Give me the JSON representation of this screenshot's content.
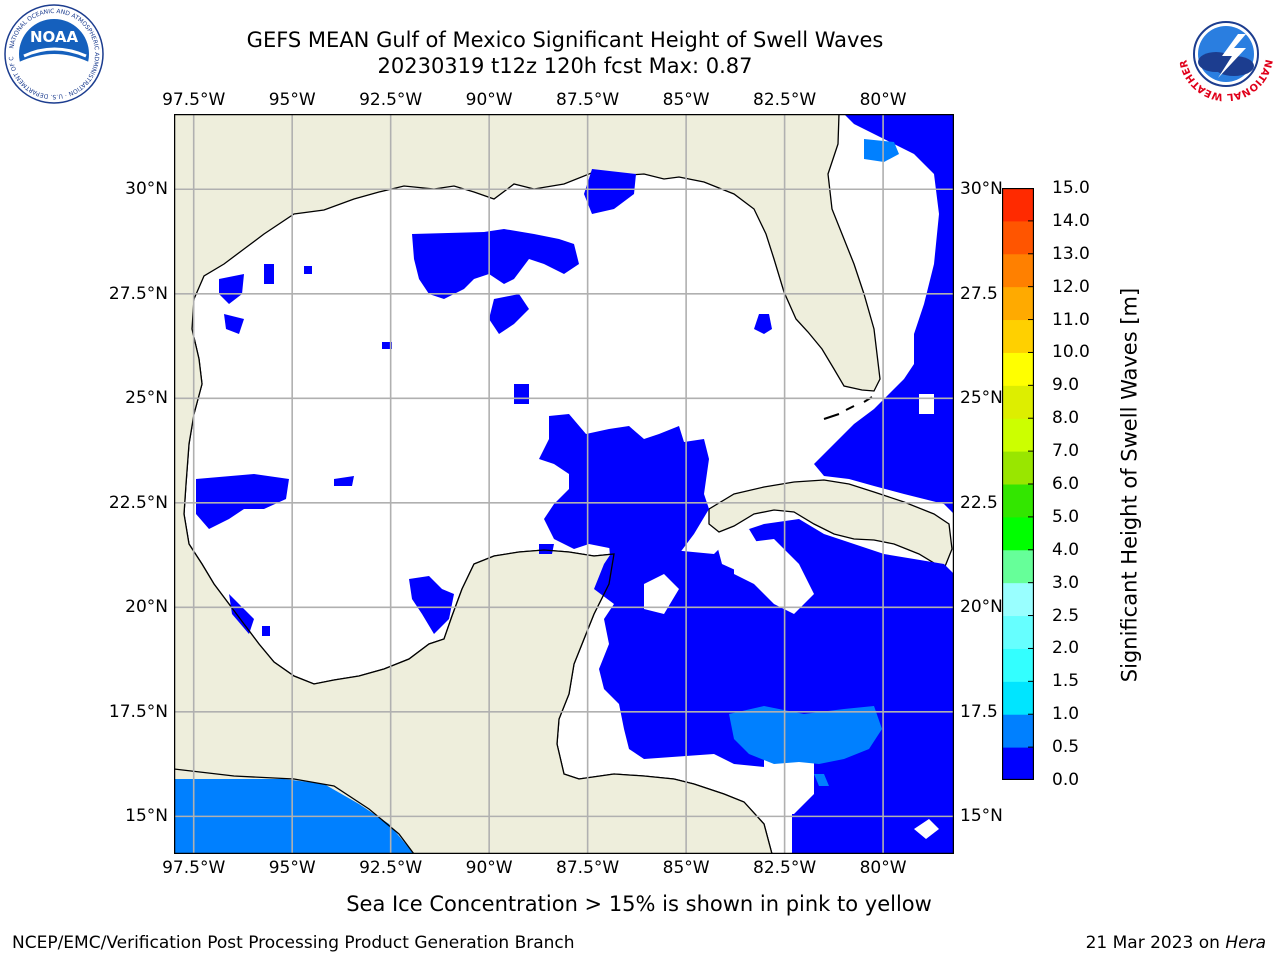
{
  "title": {
    "line1": "GEFS MEAN Gulf of Mexico Significant Height of Swell Waves",
    "line2": "20230319 t12z 120h fcst   Max: 0.87"
  },
  "map": {
    "lon_range": [
      -98.0,
      -78.2
    ],
    "lat_range": [
      14.1,
      31.8
    ],
    "lon_ticks": [
      {
        "value": -97.5,
        "label": "97.5°W"
      },
      {
        "value": -95.0,
        "label": "95°W"
      },
      {
        "value": -92.5,
        "label": "92.5°W"
      },
      {
        "value": -90.0,
        "label": "90°W"
      },
      {
        "value": -87.5,
        "label": "87.5°W"
      },
      {
        "value": -85.0,
        "label": "85°W"
      },
      {
        "value": -82.5,
        "label": "82.5°W"
      },
      {
        "value": -80.0,
        "label": "80°W"
      }
    ],
    "lat_ticks_left": [
      {
        "value": 30.0,
        "label": "30°N"
      },
      {
        "value": 27.5,
        "label": "27.5°N"
      },
      {
        "value": 25.0,
        "label": "25°N"
      },
      {
        "value": 22.5,
        "label": "22.5°N"
      },
      {
        "value": 20.0,
        "label": "20°N"
      },
      {
        "value": 17.5,
        "label": "17.5°N"
      },
      {
        "value": 15.0,
        "label": "15°N"
      }
    ],
    "lat_ticks_right": [
      {
        "value": 30.0,
        "label": "30°N"
      },
      {
        "value": 27.5,
        "label": "27.5"
      },
      {
        "value": 25.0,
        "label": "25°N"
      },
      {
        "value": 22.5,
        "label": "22.5"
      },
      {
        "value": 20.0,
        "label": "20°N"
      },
      {
        "value": 17.5,
        "label": "17.5"
      },
      {
        "value": 15.0,
        "label": "15°N"
      }
    ],
    "colors": {
      "land": "#eeeedc",
      "ocean": "#ffffff",
      "grid": "#b0b0b0",
      "coast": "#000000",
      "swell_0_05": "#0000ff",
      "swell_05_1": "#0080ff"
    }
  },
  "colorbar": {
    "label": "Significant Height of Swell Waves [m]",
    "levels": [
      "0.0",
      "0.5",
      "1.0",
      "1.5",
      "2.0",
      "2.5",
      "3.0",
      "4.0",
      "5.0",
      "6.0",
      "7.0",
      "8.0",
      "9.0",
      "10.0",
      "11.0",
      "12.0",
      "13.0",
      "14.0",
      "15.0"
    ],
    "colors": [
      "#0000ff",
      "#0080ff",
      "#00e5ff",
      "#33ffff",
      "#66ffff",
      "#99ffff",
      "#66ff99",
      "#00ff00",
      "#33e600",
      "#99e600",
      "#ccff00",
      "#ddee00",
      "#ffff00",
      "#ffd000",
      "#ffaa00",
      "#ff8000",
      "#ff5500",
      "#ff2a00",
      "#ff0000"
    ]
  },
  "sea_ice_note": "Sea Ice Concentration > 15% is shown in pink to yellow",
  "footer": {
    "left": "NCEP/EMC/Verification Post Processing Product Generation Branch",
    "date": "21 Mar 2023 on",
    "machine": "Hera"
  },
  "logos": {
    "noaa_text": "NOAA",
    "noaa_ring": "NATIONAL OCEANIC AND ATMOSPHERIC ADMINISTRATION · U.S. DEPARTMENT OF COMMERCE",
    "nws_ring": "NATIONAL WEATHER SERVICE"
  }
}
